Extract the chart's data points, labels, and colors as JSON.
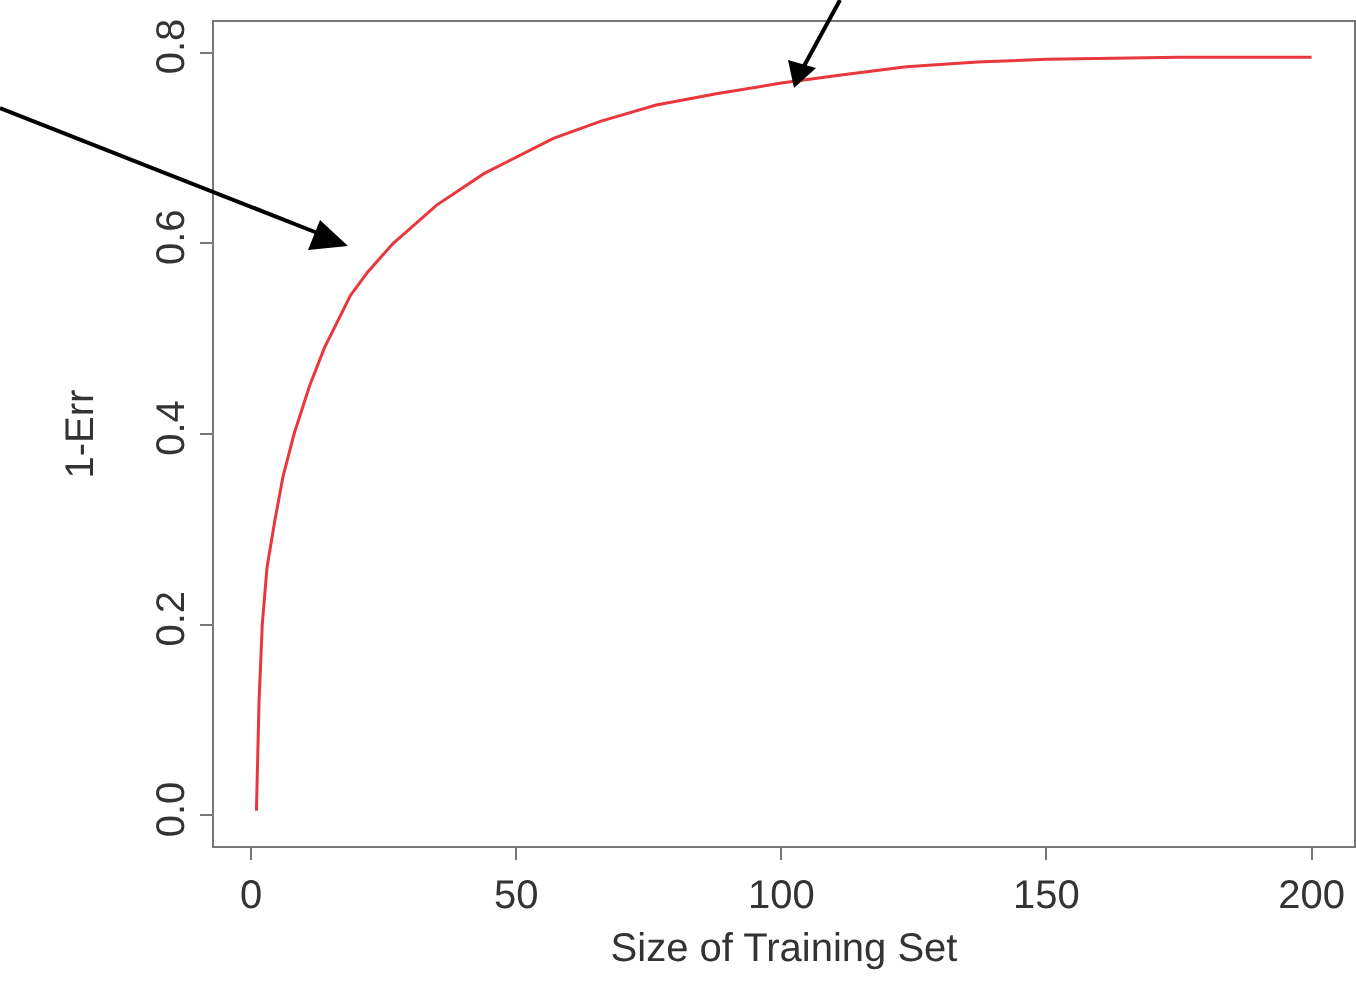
{
  "chart_data": {
    "type": "line",
    "xlabel": "Size of Training Set",
    "ylabel": "1-Err",
    "x": [
      1,
      1.5,
      2.1,
      3,
      4.5,
      6,
      8.1,
      11,
      13.8,
      18.7,
      22,
      26.8,
      35,
      43.9,
      57,
      66,
      76.4,
      88,
      100,
      112,
      123.6,
      137,
      150,
      175,
      200
    ],
    "series": [
      {
        "color": "#e8383d",
        "values": [
          0.005,
          0.12,
          0.2,
          0.26,
          0.31,
          0.355,
          0.4,
          0.45,
          0.49,
          0.545,
          0.57,
          0.6,
          0.64,
          0.673,
          0.71,
          0.728,
          0.745,
          0.757,
          0.768,
          0.777,
          0.785,
          0.79,
          0.793,
          0.795,
          0.795
        ]
      }
    ],
    "xlim": [
      -7,
      208
    ],
    "xticks": [
      0,
      50,
      100,
      150,
      200
    ],
    "ylim": [
      -0.032,
      0.832
    ],
    "yticks": [
      {
        "value": 0,
        "label": "0.0"
      },
      0.2,
      0.4,
      0.6,
      0.8
    ],
    "marker": "none",
    "line_style": "solid"
  }
}
